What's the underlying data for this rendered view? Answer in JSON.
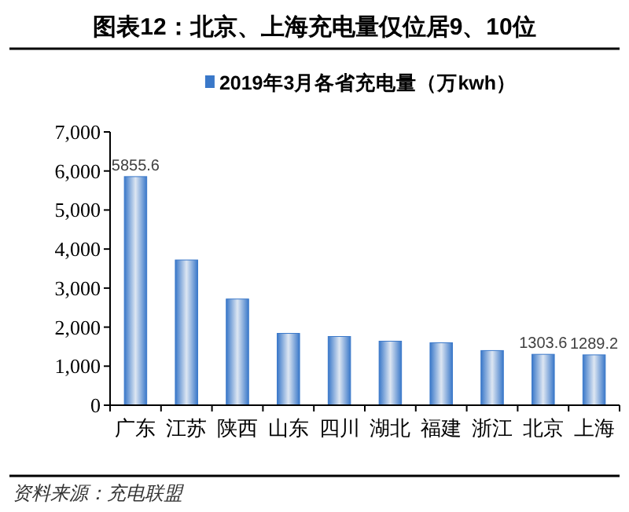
{
  "chart_data": {
    "type": "bar",
    "title": "图表12：北京、上海充电量仅位居9、10位",
    "categories": [
      "广东",
      "江苏",
      "陕西",
      "山东",
      "四川",
      "湖北",
      "福建",
      "浙江",
      "北京",
      "上海"
    ],
    "series": [
      {
        "name": "2019年3月各省充电量（万kwh）",
        "color": "#3a78c9",
        "values": [
          5855.6,
          3720,
          2720,
          1840,
          1760,
          1640,
          1600,
          1400,
          1303.6,
          1289.2
        ],
        "value_labels": [
          "5855.6",
          null,
          null,
          null,
          null,
          null,
          null,
          null,
          "1303.6",
          "1289.2"
        ]
      }
    ],
    "ylim": [
      0,
      7000
    ],
    "yticks": [
      {
        "value": 0,
        "label": "0"
      },
      {
        "value": 1000,
        "label": "1,000"
      },
      {
        "value": 2000,
        "label": "2,000"
      },
      {
        "value": 3000,
        "label": "3,000"
      },
      {
        "value": 4000,
        "label": "4,000"
      },
      {
        "value": 5000,
        "label": "5,000"
      },
      {
        "value": 6000,
        "label": "6,000"
      },
      {
        "value": 7000,
        "label": "7,000"
      }
    ],
    "grid": false,
    "legend": "top",
    "annotations": [
      "资料来源：充电联盟"
    ]
  }
}
